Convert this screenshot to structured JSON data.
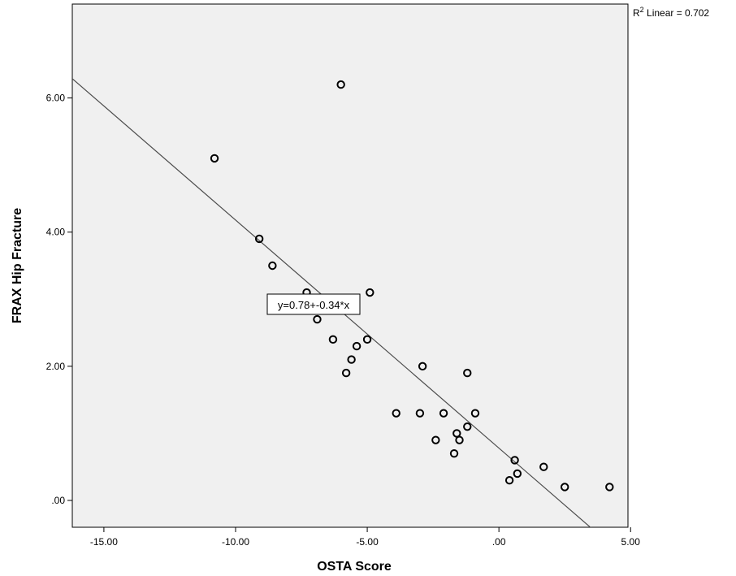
{
  "chart_data": {
    "type": "scatter",
    "xlabel": "OSTA Score",
    "ylabel": "FRAX Hip Fracture",
    "xlim": [
      -16.2,
      4.9
    ],
    "ylim": [
      -0.4,
      7.4
    ],
    "x_ticks": [
      -15,
      -10,
      -5,
      0,
      5
    ],
    "x_tick_labels": [
      "-15.00",
      "-10.00",
      "-5.00",
      ".00",
      "5.00"
    ],
    "y_ticks": [
      0,
      2,
      4,
      6
    ],
    "y_tick_labels": [
      ".00",
      "2.00",
      "4.00",
      "6.00"
    ],
    "grid": false,
    "background": "#f0f0f0",
    "marker": "open-circle",
    "points": [
      {
        "x": -10.8,
        "y": 5.1
      },
      {
        "x": -9.1,
        "y": 3.9
      },
      {
        "x": -8.6,
        "y": 3.5
      },
      {
        "x": -7.3,
        "y": 3.1
      },
      {
        "x": -6.9,
        "y": 2.7
      },
      {
        "x": -6.3,
        "y": 2.4
      },
      {
        "x": -6.0,
        "y": 6.2
      },
      {
        "x": -5.8,
        "y": 1.9
      },
      {
        "x": -5.6,
        "y": 2.1
      },
      {
        "x": -5.4,
        "y": 2.3
      },
      {
        "x": -5.0,
        "y": 2.4
      },
      {
        "x": -4.9,
        "y": 3.1
      },
      {
        "x": -3.9,
        "y": 1.3
      },
      {
        "x": -3.0,
        "y": 1.3
      },
      {
        "x": -2.9,
        "y": 2.0
      },
      {
        "x": -2.4,
        "y": 0.9
      },
      {
        "x": -2.1,
        "y": 1.3
      },
      {
        "x": -1.7,
        "y": 0.7
      },
      {
        "x": -1.6,
        "y": 1.0
      },
      {
        "x": -1.5,
        "y": 0.9
      },
      {
        "x": -1.2,
        "y": 1.1
      },
      {
        "x": -1.2,
        "y": 1.9
      },
      {
        "x": -0.9,
        "y": 1.3
      },
      {
        "x": 0.4,
        "y": 0.3
      },
      {
        "x": 0.6,
        "y": 0.6
      },
      {
        "x": 0.7,
        "y": 0.4
      },
      {
        "x": 1.7,
        "y": 0.5
      },
      {
        "x": 2.5,
        "y": 0.2
      },
      {
        "x": 4.2,
        "y": 0.2
      }
    ],
    "fit_line": {
      "equation_label": "y=0.78+-0.34*x",
      "intercept": 0.78,
      "slope": -0.34
    },
    "r2_label": {
      "prefix": "R",
      "superscript": "2",
      "suffix": " Linear = 0.702"
    },
    "colors": {
      "plot_background": "#f0f0f0",
      "marker": "#000000",
      "fit_line": "#4d4d4d"
    }
  }
}
